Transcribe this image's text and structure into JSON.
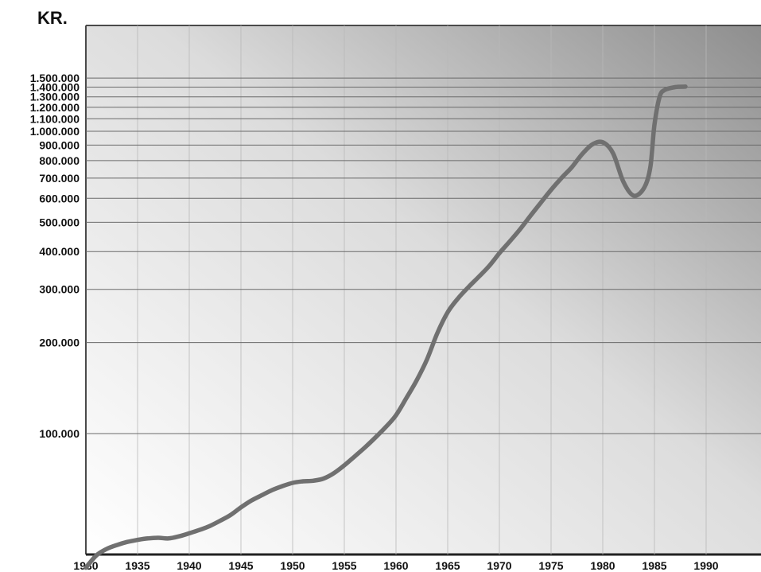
{
  "chart_data": {
    "type": "line",
    "unit_label": "KR.",
    "y_scale": "log",
    "y_ticks": [
      {
        "value": 100000,
        "label": "100.000"
      },
      {
        "value": 200000,
        "label": "200.000"
      },
      {
        "value": 300000,
        "label": "300.000"
      },
      {
        "value": 400000,
        "label": "400.000"
      },
      {
        "value": 500000,
        "label": "500.000"
      },
      {
        "value": 600000,
        "label": "600.000"
      },
      {
        "value": 700000,
        "label": "700.000"
      },
      {
        "value": 800000,
        "label": "800.000"
      },
      {
        "value": 900000,
        "label": "900.000"
      },
      {
        "value": 1000000,
        "label": "1.000.000"
      },
      {
        "value": 1100000,
        "label": "1.100.000"
      },
      {
        "value": 1200000,
        "label": "1.200.000"
      },
      {
        "value": 1300000,
        "label": "1.300.000"
      },
      {
        "value": 1400000,
        "label": "1.400.000"
      },
      {
        "value": 1500000,
        "label": "1.500.000"
      }
    ],
    "x_ticks": [
      1930,
      1935,
      1940,
      1945,
      1950,
      1955,
      1960,
      1965,
      1970,
      1975,
      1980,
      1985,
      1990
    ],
    "xlim": [
      1930,
      1994
    ],
    "grid": true,
    "series": [
      {
        "points": [
          [
            1930,
            36000
          ],
          [
            1931,
            39500
          ],
          [
            1932,
            41500
          ],
          [
            1933,
            42800
          ],
          [
            1934,
            43800
          ],
          [
            1935,
            44500
          ],
          [
            1936,
            45000
          ],
          [
            1937,
            45200
          ],
          [
            1938,
            45000
          ],
          [
            1939,
            45700
          ],
          [
            1940,
            46800
          ],
          [
            1941,
            48000
          ],
          [
            1942,
            49500
          ],
          [
            1943,
            51500
          ],
          [
            1944,
            53800
          ],
          [
            1945,
            57000
          ],
          [
            1946,
            60000
          ],
          [
            1947,
            62500
          ],
          [
            1948,
            65000
          ],
          [
            1949,
            67000
          ],
          [
            1950,
            68700
          ],
          [
            1951,
            69500
          ],
          [
            1952,
            69800
          ],
          [
            1953,
            71000
          ],
          [
            1954,
            74000
          ],
          [
            1955,
            78500
          ],
          [
            1956,
            84000
          ],
          [
            1957,
            90000
          ],
          [
            1958,
            97000
          ],
          [
            1959,
            105000
          ],
          [
            1960,
            115000
          ],
          [
            1961,
            131000
          ],
          [
            1962,
            150000
          ],
          [
            1963,
            176000
          ],
          [
            1964,
            215000
          ],
          [
            1965,
            252000
          ],
          [
            1966,
            280000
          ],
          [
            1967,
            305000
          ],
          [
            1968,
            330000
          ],
          [
            1969,
            358000
          ],
          [
            1970,
            395000
          ],
          [
            1971,
            432000
          ],
          [
            1972,
            474000
          ],
          [
            1973,
            525000
          ],
          [
            1974,
            580000
          ],
          [
            1975,
            640000
          ],
          [
            1976,
            700000
          ],
          [
            1977,
            760000
          ],
          [
            1978,
            840000
          ],
          [
            1979,
            905000
          ],
          [
            1980,
            920000
          ],
          [
            1981,
            845000
          ],
          [
            1982,
            680000
          ],
          [
            1983,
            612000
          ],
          [
            1984,
            650000
          ],
          [
            1984.6,
            760000
          ],
          [
            1985,
            1050000
          ],
          [
            1985.5,
            1300000
          ],
          [
            1986,
            1370000
          ],
          [
            1987,
            1400000
          ],
          [
            1988,
            1405000
          ]
        ]
      }
    ]
  }
}
